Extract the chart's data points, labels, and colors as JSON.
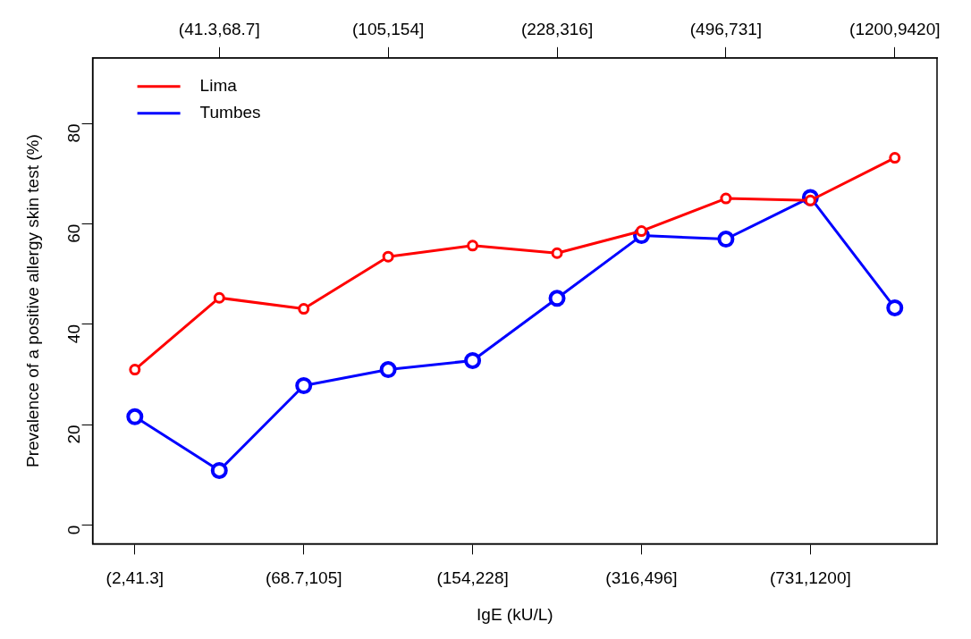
{
  "chart_data": {
    "type": "line",
    "xlabel": "IgE (kU/L)",
    "ylabel": "Prevalence of a positive allergy skin test (%)",
    "categories": [
      "(2,41.3]",
      "(41.3,68.7]",
      "(68.7,105]",
      "(105,154]",
      "(154,228]",
      "(228,316]",
      "(316,496]",
      "(496,731]",
      "(731,1200]",
      "(1200,9420]"
    ],
    "series": [
      {
        "name": "Lima",
        "color": "#ff0000",
        "values": [
          31,
          45.3,
          43.1,
          53.5,
          55.7,
          54.2,
          58.6,
          65.1,
          64.7,
          73.2
        ]
      },
      {
        "name": "Tumbes",
        "color": "#0000ff",
        "values": [
          21.6,
          10.9,
          27.8,
          31,
          32.8,
          45.2,
          57.7,
          57,
          65.3,
          43.3
        ]
      }
    ],
    "ylim": [
      -3.7,
      93.1
    ],
    "yticks": [
      0,
      20,
      40,
      60,
      80
    ],
    "grid": false,
    "legend": "top left",
    "marker": "circle",
    "line_style": "solid"
  }
}
